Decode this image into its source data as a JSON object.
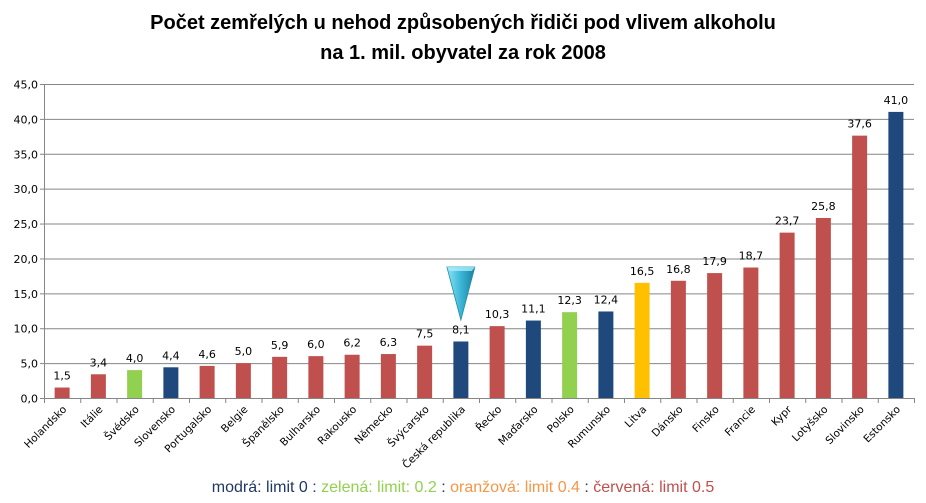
{
  "chart_data": {
    "type": "bar",
    "title_lines": [
      "Počet zemřelých u nehod způsobených řidiči pod vlivem alkoholu",
      "na 1. mil. obyvatel za rok 2008"
    ],
    "xlabel": "",
    "ylabel": "",
    "ylim": [
      0,
      45
    ],
    "yticks": [
      "0,0",
      "5,0",
      "10,0",
      "15,0",
      "20,0",
      "25,0",
      "30,0",
      "35,0",
      "40,0",
      "45,0"
    ],
    "ytick_values": [
      0,
      5,
      10,
      15,
      20,
      25,
      30,
      35,
      40,
      45
    ],
    "grid": true,
    "categories": [
      "Holandsko",
      "Itálie",
      "Švédsko",
      "Slovensko",
      "Portugalsko",
      "Belgie",
      "Španělsko",
      "Bulharsko",
      "Rakousko",
      "Německo",
      "Švýcarsko",
      "Česká republika",
      "Řecko",
      "Maďarsko",
      "Polsko",
      "Rumunsko",
      "Litva",
      "Dánsko",
      "Finsko",
      "Francie",
      "Kypr",
      "Lotyšsko",
      "Slovinsko",
      "Estonsko"
    ],
    "values": [
      1.5,
      3.4,
      4.0,
      4.4,
      4.6,
      5.0,
      5.9,
      6.0,
      6.2,
      6.3,
      7.5,
      8.1,
      10.3,
      11.1,
      12.3,
      12.4,
      16.5,
      16.8,
      17.9,
      18.7,
      23.7,
      25.8,
      37.6,
      41.0
    ],
    "value_labels": [
      "1,5",
      "3,4",
      "4,0",
      "4,4",
      "4,6",
      "5,0",
      "5,9",
      "6,0",
      "6,2",
      "6,3",
      "7,5",
      "8,1",
      "10,3",
      "11,1",
      "12,3",
      "12,4",
      "16,5",
      "16,8",
      "17,9",
      "18,7",
      "23,7",
      "25,8",
      "37,6",
      "41,0"
    ],
    "limit_groups": [
      "red",
      "red",
      "green",
      "blue",
      "red",
      "red",
      "red",
      "red",
      "red",
      "red",
      "red",
      "blue",
      "red",
      "blue",
      "green",
      "blue",
      "orange",
      "red",
      "red",
      "red",
      "red",
      "red",
      "red",
      "blue"
    ],
    "highlight_category": "Česká republika",
    "colors": {
      "blue": "#1f497d",
      "green": "#92d050",
      "orange": "#ffc000",
      "red": "#c0504d",
      "grid": "#868686",
      "marker": "#3bb6d6"
    }
  },
  "legend": {
    "items": [
      {
        "text": "modrá: limit 0",
        "color": "#1f3864"
      },
      {
        "text": "zelená: limit: 0.2",
        "color": "#92d050"
      },
      {
        "text": "oranžová: limit 0.4",
        "color": "#f79646"
      },
      {
        "text": "červená: limit 0.5",
        "color": "#c0504d"
      }
    ],
    "separator": " : "
  }
}
